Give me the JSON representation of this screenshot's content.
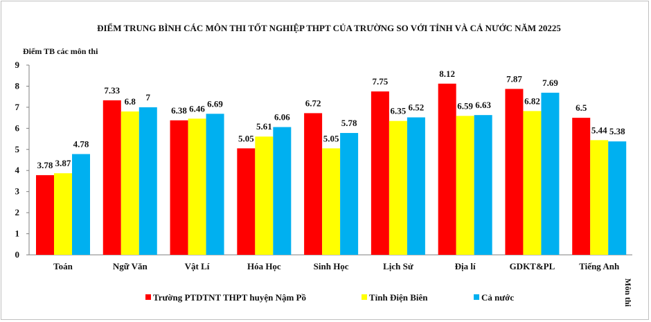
{
  "chart_data": {
    "type": "bar",
    "title": "ĐIỂM TRUNG BÌNH CÁC MÔN THI TỐT NGHIỆP THPT CỦA TRƯỜNG SO VỚI TỈNH VÀ CẢ NƯỚC NĂM 20225",
    "ylabel": "Điểm TB các môn thi",
    "xlabel": "Môn thi",
    "ylim": [
      0,
      9
    ],
    "yticks": [
      "0",
      "1",
      "2",
      "3",
      "4",
      "5",
      "6",
      "7",
      "8",
      "9"
    ],
    "grid": false,
    "legend_position": "bottom",
    "categories": [
      "Toán",
      "Ngữ Văn",
      "Vật Lí",
      "Hóa Học",
      "Sinh Học",
      "Lịch Sử",
      "Địa lí",
      "GDKT&PL",
      "Tiếng Anh"
    ],
    "series": [
      {
        "name": "Trường PTDTNT THPT huyện Nậm Pồ",
        "color": "#ff0000",
        "values": [
          3.78,
          7.33,
          6.38,
          5.05,
          6.72,
          7.75,
          8.12,
          7.87,
          6.5
        ],
        "labels": [
          "3.78",
          "7.33",
          "6.38",
          "5.05",
          "6.72",
          "7.75",
          "8.12",
          "7.87",
          "6.5"
        ]
      },
      {
        "name": "Tỉnh Điện Biên",
        "color": "#ffff00",
        "values": [
          3.87,
          6.8,
          6.46,
          5.61,
          5.05,
          6.35,
          6.59,
          6.82,
          5.44
        ],
        "labels": [
          "3.87",
          "6.8",
          "6.46",
          "5.61",
          "5.05",
          "6.35",
          "6.59",
          "6.82",
          "5.44"
        ]
      },
      {
        "name": "Cả nước",
        "color": "#00b0f0",
        "values": [
          4.78,
          7,
          6.69,
          6.06,
          5.78,
          6.52,
          6.63,
          7.69,
          5.38
        ],
        "labels": [
          "4.78",
          "7",
          "6.69",
          "6.06",
          "5.78",
          "6.52",
          "6.63",
          "7.69",
          "5.38"
        ]
      }
    ]
  }
}
